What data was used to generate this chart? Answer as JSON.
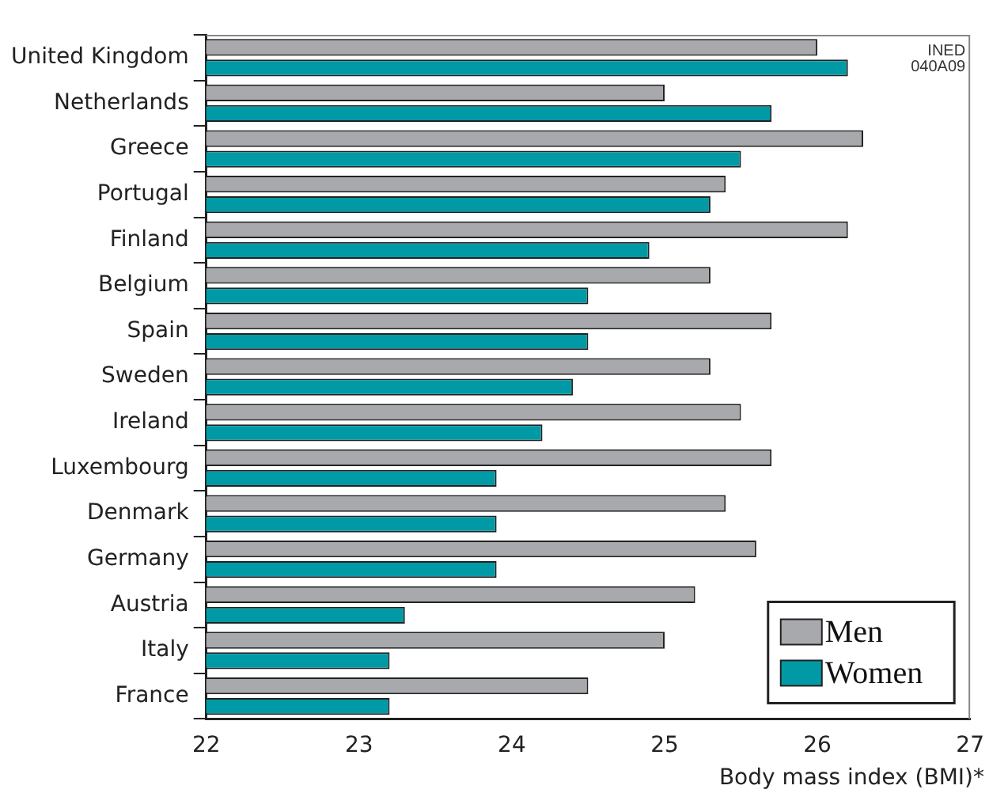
{
  "chart_data": {
    "type": "bar",
    "orientation": "horizontal",
    "xlabel": "Body mass index (BMI)*",
    "categories": [
      "United Kingdom",
      "Netherlands",
      "Greece",
      "Portugal",
      "Finland",
      "Belgium",
      "Spain",
      "Sweden",
      "Ireland",
      "Luxembourg",
      "Denmark",
      "Germany",
      "Austria",
      "Italy",
      "France"
    ],
    "series": [
      {
        "name": "Men",
        "color": "#a7a9ac",
        "values": [
          26.0,
          25.0,
          26.3,
          25.4,
          26.2,
          25.3,
          25.7,
          25.3,
          25.5,
          25.7,
          25.4,
          25.6,
          25.2,
          25.0,
          24.5
        ]
      },
      {
        "name": "Women",
        "color": "#009aa6",
        "values": [
          26.2,
          25.7,
          25.5,
          25.3,
          24.9,
          24.5,
          24.5,
          24.4,
          24.2,
          23.9,
          23.9,
          23.9,
          23.3,
          23.2,
          23.2
        ]
      }
    ],
    "xlim": [
      22,
      27
    ],
    "xticks": [
      22,
      23,
      24,
      25,
      26,
      27
    ],
    "grid": false,
    "legend": "bottom right",
    "annotations": [
      "INED",
      "040A09"
    ]
  }
}
